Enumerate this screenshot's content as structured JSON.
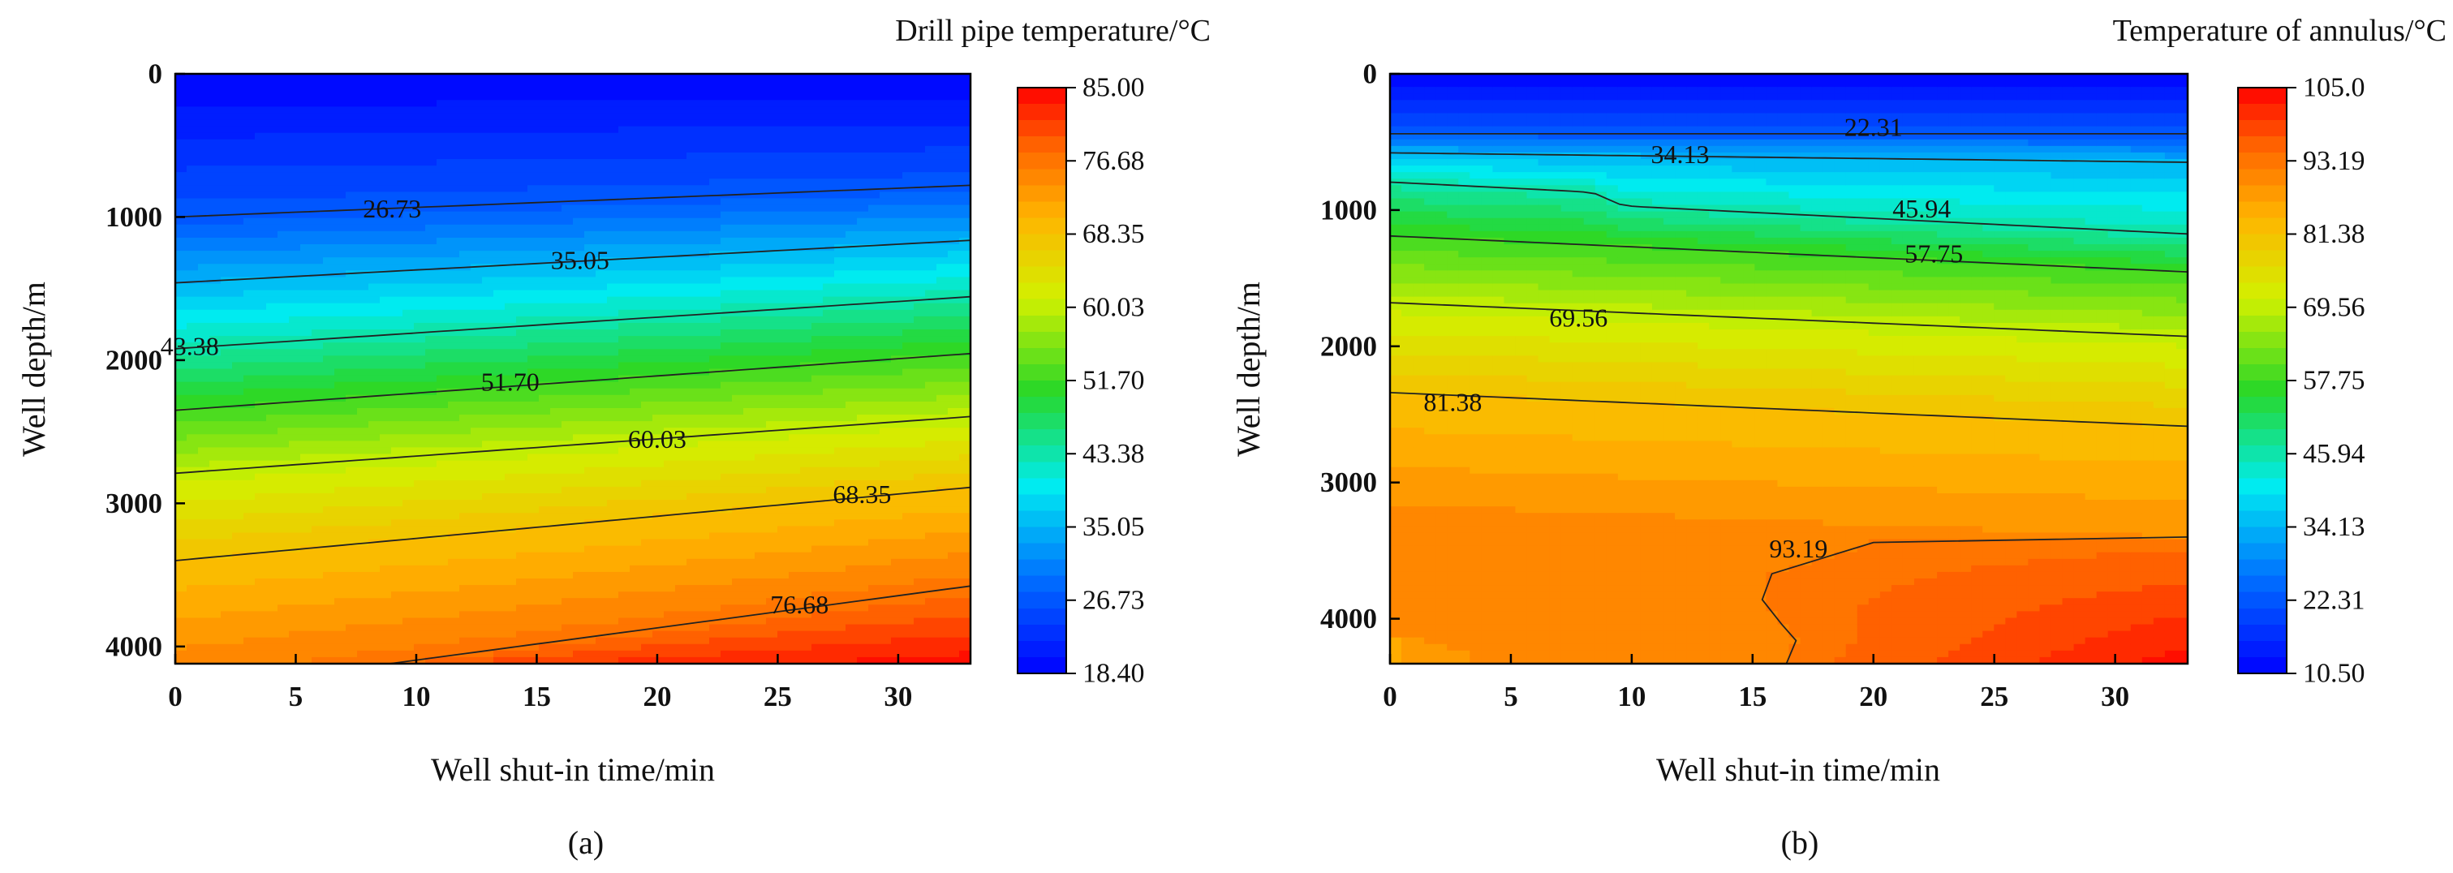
{
  "chart_data": [
    {
      "type": "heatmap",
      "panel_label": "(a)",
      "title": "Drill pipe temperature/°C",
      "xlabel": "Well shut-in time/min",
      "ylabel": "Well depth/m",
      "xlim": [
        0,
        33
      ],
      "ylim": [
        0,
        4120
      ],
      "x_ticks": [
        "0",
        "5",
        "10",
        "15",
        "20",
        "25",
        "30"
      ],
      "y_ticks": [
        "0",
        "1000",
        "2000",
        "3000",
        "4000"
      ],
      "z_range": [
        18.4,
        85.0
      ],
      "colorbar_ticks": [
        "85.00",
        "76.68",
        "68.35",
        "60.03",
        "51.70",
        "43.38",
        "35.05",
        "26.73",
        "18.40"
      ],
      "isotherm_depth_model": "depth_at_temperature_T = a + b*t, t in min",
      "isotherms": [
        {
          "label": "26.73",
          "value": 26.73,
          "a": 1000,
          "b": -6.7,
          "label_x": 9,
          "label_y": 940
        },
        {
          "label": "35.05",
          "value": 35.05,
          "a": 1460,
          "b": -9.0,
          "label_x": 16.8,
          "label_y": 1300
        },
        {
          "label": "43.38",
          "value": 43.38,
          "a": 1920,
          "b": -11.0,
          "label_x": 0.6,
          "label_y": 1900
        },
        {
          "label": "51.70",
          "value": 51.7,
          "a": 2350,
          "b": -12.0,
          "label_x": 13.9,
          "label_y": 2150
        },
        {
          "label": "60.03",
          "value": 60.03,
          "a": 2790,
          "b": -12.0,
          "label_x": 20.0,
          "label_y": 2550
        },
        {
          "label": "68.35",
          "value": 68.35,
          "a": 3400,
          "b": -15.5,
          "label_x": 28.5,
          "label_y": 2935
        },
        {
          "label": "76.68",
          "value": 76.68,
          "a": 4320,
          "b": -22.5,
          "label_x": 25.9,
          "label_y": 3705
        }
      ]
    },
    {
      "type": "heatmap",
      "panel_label": "(b)",
      "title": "Temperature of annulus/°C",
      "xlabel": "Well shut-in time/min",
      "ylabel": "Well depth/m",
      "xlim": [
        0,
        33
      ],
      "ylim": [
        0,
        4330
      ],
      "x_ticks": [
        "0",
        "5",
        "10",
        "15",
        "20",
        "25",
        "30"
      ],
      "y_ticks": [
        "0",
        "1000",
        "2000",
        "3000",
        "4000"
      ],
      "z_range": [
        10.5,
        105.0
      ],
      "colorbar_ticks": [
        "105.0",
        "93.19",
        "81.38",
        "69.56",
        "57.75",
        "45.94",
        "34.13",
        "22.31",
        "10.50"
      ],
      "isotherm_depth_model": "depth_at_temperature_T = a + b*t + c*tanh((t-9)/0.5), t in min",
      "isotherms": [
        {
          "label": "22.31",
          "value": 22.31,
          "a": 440,
          "b": 0.0,
          "c": 0,
          "label_x": 20.0,
          "label_y": 390
        },
        {
          "label": "34.13",
          "value": 34.13,
          "a": 580,
          "b": 2.1,
          "c": 0,
          "label_x": 12.0,
          "label_y": 590
        },
        {
          "label": "45.94",
          "value": 45.94,
          "a": 840,
          "b": 8.8,
          "c": 45,
          "label_x": 22.0,
          "label_y": 990
        },
        {
          "label": "57.75",
          "value": 57.75,
          "a": 1190,
          "b": 8.0,
          "c": 0,
          "label_x": 22.5,
          "label_y": 1320
        },
        {
          "label": "69.56",
          "value": 69.56,
          "a": 1680,
          "b": 7.5,
          "c": 0,
          "label_x": 7.8,
          "label_y": 1790
        },
        {
          "label": "81.38",
          "value": 81.38,
          "a": 2340,
          "b": 7.5,
          "c": 0,
          "label_x": 2.6,
          "label_y": 2410
        },
        {
          "label": "93.19",
          "value": 93.19,
          "label_x": 16.9,
          "label_y": 3485
        }
      ],
      "hot_zone_boundary_93_19": [
        [
          33,
          3400
        ],
        [
          20,
          3440
        ],
        [
          15.8,
          3670
        ],
        [
          15.4,
          3860
        ],
        [
          16.2,
          4040
        ],
        [
          16.8,
          4160
        ],
        [
          16.4,
          4330
        ]
      ]
    }
  ]
}
